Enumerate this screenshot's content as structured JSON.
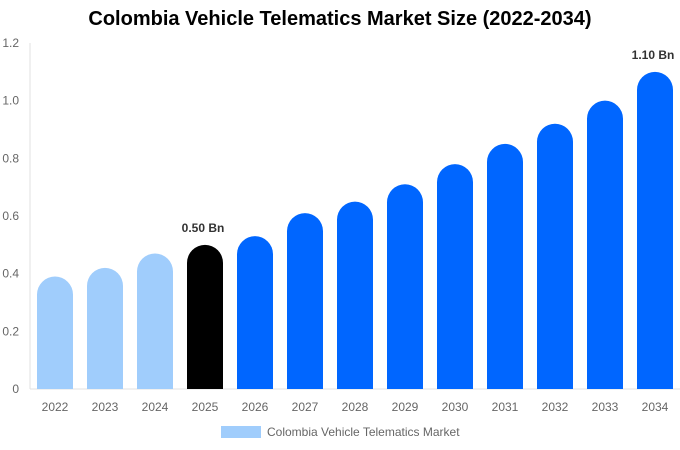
{
  "chart_data": {
    "type": "bar",
    "title": "Colombia Vehicle Telematics Market Size (2022-2034)",
    "categories": [
      "2022",
      "2023",
      "2024",
      "2025",
      "2026",
      "2027",
      "2028",
      "2029",
      "2030",
      "2031",
      "2032",
      "2033",
      "2034"
    ],
    "series": [
      {
        "name": "Colombia Vehicle Telematics Market",
        "values": [
          0.39,
          0.42,
          0.47,
          0.5,
          0.53,
          0.61,
          0.65,
          0.71,
          0.78,
          0.85,
          0.92,
          1.0,
          1.1
        ]
      }
    ],
    "data_labels": {
      "3": "0.50 Bn",
      "12": "1.10 Bn"
    },
    "ylim": [
      0,
      1.2
    ],
    "yticks": [
      "0",
      "0.2",
      "0.4",
      "0.6",
      "0.8",
      "1.0",
      "1.2"
    ],
    "grid": false,
    "legend": "bottom",
    "colors": {
      "historical": "#a0cdfc",
      "base_year": "#000000",
      "forecast": "#0066ff"
    }
  }
}
